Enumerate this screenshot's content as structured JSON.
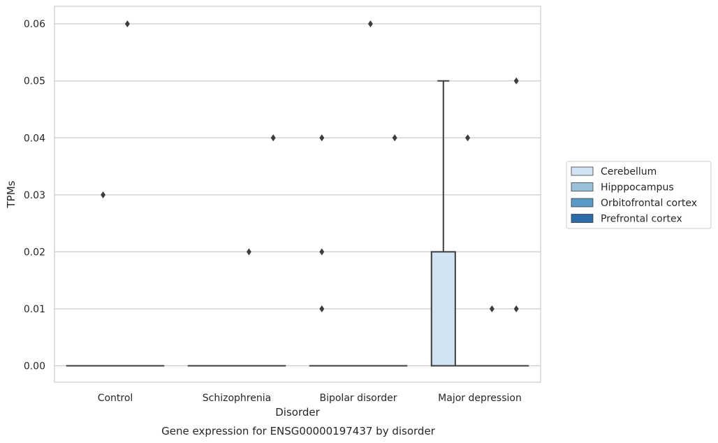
{
  "chart_data": {
    "type": "box",
    "title": "",
    "caption": "Gene expression for ENSG00000197437 by disorder",
    "xlabel": "Disorder",
    "ylabel": "TPMs",
    "ylim": [
      -0.003,
      0.063
    ],
    "yticks": [
      0.0,
      0.01,
      0.02,
      0.03,
      0.04,
      0.05,
      0.06
    ],
    "ytick_labels": [
      "0.00",
      "0.01",
      "0.02",
      "0.03",
      "0.04",
      "0.05",
      "0.06"
    ],
    "grid": true,
    "legend_position": "right",
    "categories": [
      "Control",
      "Schizophrenia",
      "Bipolar disorder",
      "Major depression"
    ],
    "series": [
      {
        "name": "Cerebellum",
        "color": "#d1e2f2",
        "boxes": [
          {
            "q1": 0,
            "median": 0,
            "q3": 0,
            "whisker_low": 0,
            "whisker_high": 0,
            "outliers": []
          },
          {
            "q1": 0,
            "median": 0,
            "q3": 0,
            "whisker_low": 0,
            "whisker_high": 0,
            "outliers": []
          },
          {
            "q1": 0,
            "median": 0,
            "q3": 0,
            "whisker_low": 0,
            "whisker_high": 0,
            "outliers": [
              0.01,
              0.02,
              0.04
            ]
          },
          {
            "q1": 0,
            "median": 0,
            "q3": 0.02,
            "whisker_low": 0,
            "whisker_high": 0.05,
            "outliers": []
          }
        ]
      },
      {
        "name": "Hipppocampus",
        "color": "#9ac1dc",
        "boxes": [
          {
            "q1": 0,
            "median": 0,
            "q3": 0,
            "whisker_low": 0,
            "whisker_high": 0,
            "outliers": [
              0.03
            ]
          },
          {
            "q1": 0,
            "median": 0,
            "q3": 0,
            "whisker_low": 0,
            "whisker_high": 0,
            "outliers": []
          },
          {
            "q1": 0,
            "median": 0,
            "q3": 0,
            "whisker_low": 0,
            "whisker_high": 0,
            "outliers": []
          },
          {
            "q1": 0,
            "median": 0,
            "q3": 0,
            "whisker_low": 0,
            "whisker_high": 0,
            "outliers": [
              0.04
            ]
          }
        ]
      },
      {
        "name": "Orbitofrontal cortex",
        "color": "#5a9ac6",
        "boxes": [
          {
            "q1": 0,
            "median": 0,
            "q3": 0,
            "whisker_low": 0,
            "whisker_high": 0,
            "outliers": [
              0.06
            ]
          },
          {
            "q1": 0,
            "median": 0,
            "q3": 0,
            "whisker_low": 0,
            "whisker_high": 0,
            "outliers": [
              0.02
            ]
          },
          {
            "q1": 0,
            "median": 0,
            "q3": 0,
            "whisker_low": 0,
            "whisker_high": 0,
            "outliers": [
              0.06
            ]
          },
          {
            "q1": 0,
            "median": 0,
            "q3": 0,
            "whisker_low": 0,
            "whisker_high": 0,
            "outliers": [
              0.01
            ]
          }
        ]
      },
      {
        "name": "Prefrontal cortex",
        "color": "#2b6ba7",
        "boxes": [
          {
            "q1": 0,
            "median": 0,
            "q3": 0,
            "whisker_low": 0,
            "whisker_high": 0,
            "outliers": []
          },
          {
            "q1": 0,
            "median": 0,
            "q3": 0,
            "whisker_low": 0,
            "whisker_high": 0,
            "outliers": [
              0.04
            ]
          },
          {
            "q1": 0,
            "median": 0,
            "q3": 0,
            "whisker_low": 0,
            "whisker_high": 0,
            "outliers": [
              0.04
            ]
          },
          {
            "q1": 0,
            "median": 0,
            "q3": 0,
            "whisker_low": 0,
            "whisker_high": 0,
            "outliers": [
              0.01,
              0.05
            ]
          }
        ]
      }
    ]
  }
}
